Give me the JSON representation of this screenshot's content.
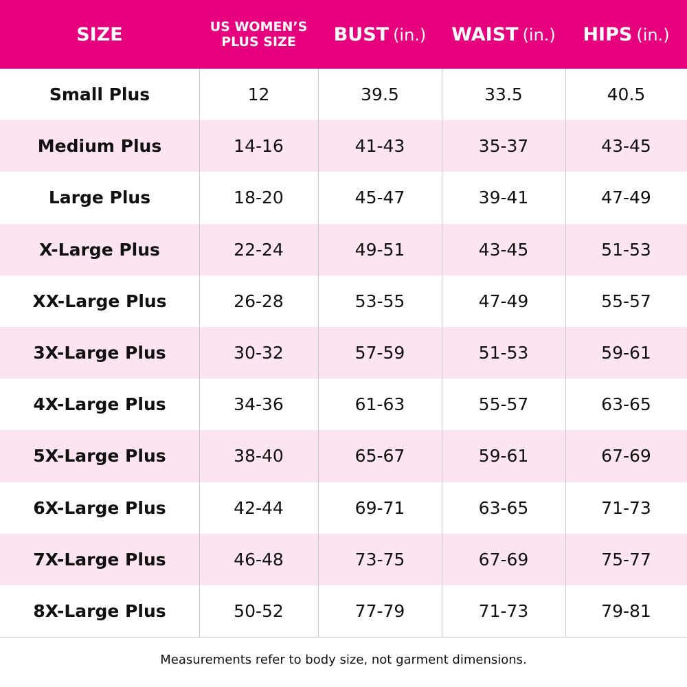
{
  "table": {
    "header": [
      {
        "lines": [
          "SIZE"
        ]
      },
      {
        "lines": [
          "US WOMEN’S",
          "PLUS SIZE"
        ]
      },
      {
        "label": "BUST",
        "unit": "(in.)"
      },
      {
        "label": "WAIST",
        "unit": "(in.)"
      },
      {
        "label": "HIPS",
        "unit": "(in.)"
      }
    ],
    "rows": [
      [
        "Small Plus",
        "12",
        "39.5",
        "33.5",
        "40.5"
      ],
      [
        "Medium Plus",
        "14-16",
        "41-43",
        "35-37",
        "43-45"
      ],
      [
        "Large Plus",
        "18-20",
        "45-47",
        "39-41",
        "47-49"
      ],
      [
        "X-Large Plus",
        "22-24",
        "49-51",
        "43-45",
        "51-53"
      ],
      [
        "XX-Large Plus",
        "26-28",
        "53-55",
        "47-49",
        "55-57"
      ],
      [
        "3X-Large Plus",
        "30-32",
        "57-59",
        "51-53",
        "59-61"
      ],
      [
        "4X-Large Plus",
        "34-36",
        "61-63",
        "55-57",
        "63-65"
      ],
      [
        "5X-Large Plus",
        "38-40",
        "65-67",
        "59-61",
        "67-69"
      ],
      [
        "6X-Large Plus",
        "42-44",
        "69-71",
        "63-65",
        "71-73"
      ],
      [
        "7X-Large Plus",
        "46-48",
        "73-75",
        "67-69",
        "75-77"
      ],
      [
        "8X-Large Plus",
        "50-52",
        "77-79",
        "71-73",
        "79-81"
      ]
    ]
  },
  "footnote": "Measurements refer to body size, not garment dimensions."
}
